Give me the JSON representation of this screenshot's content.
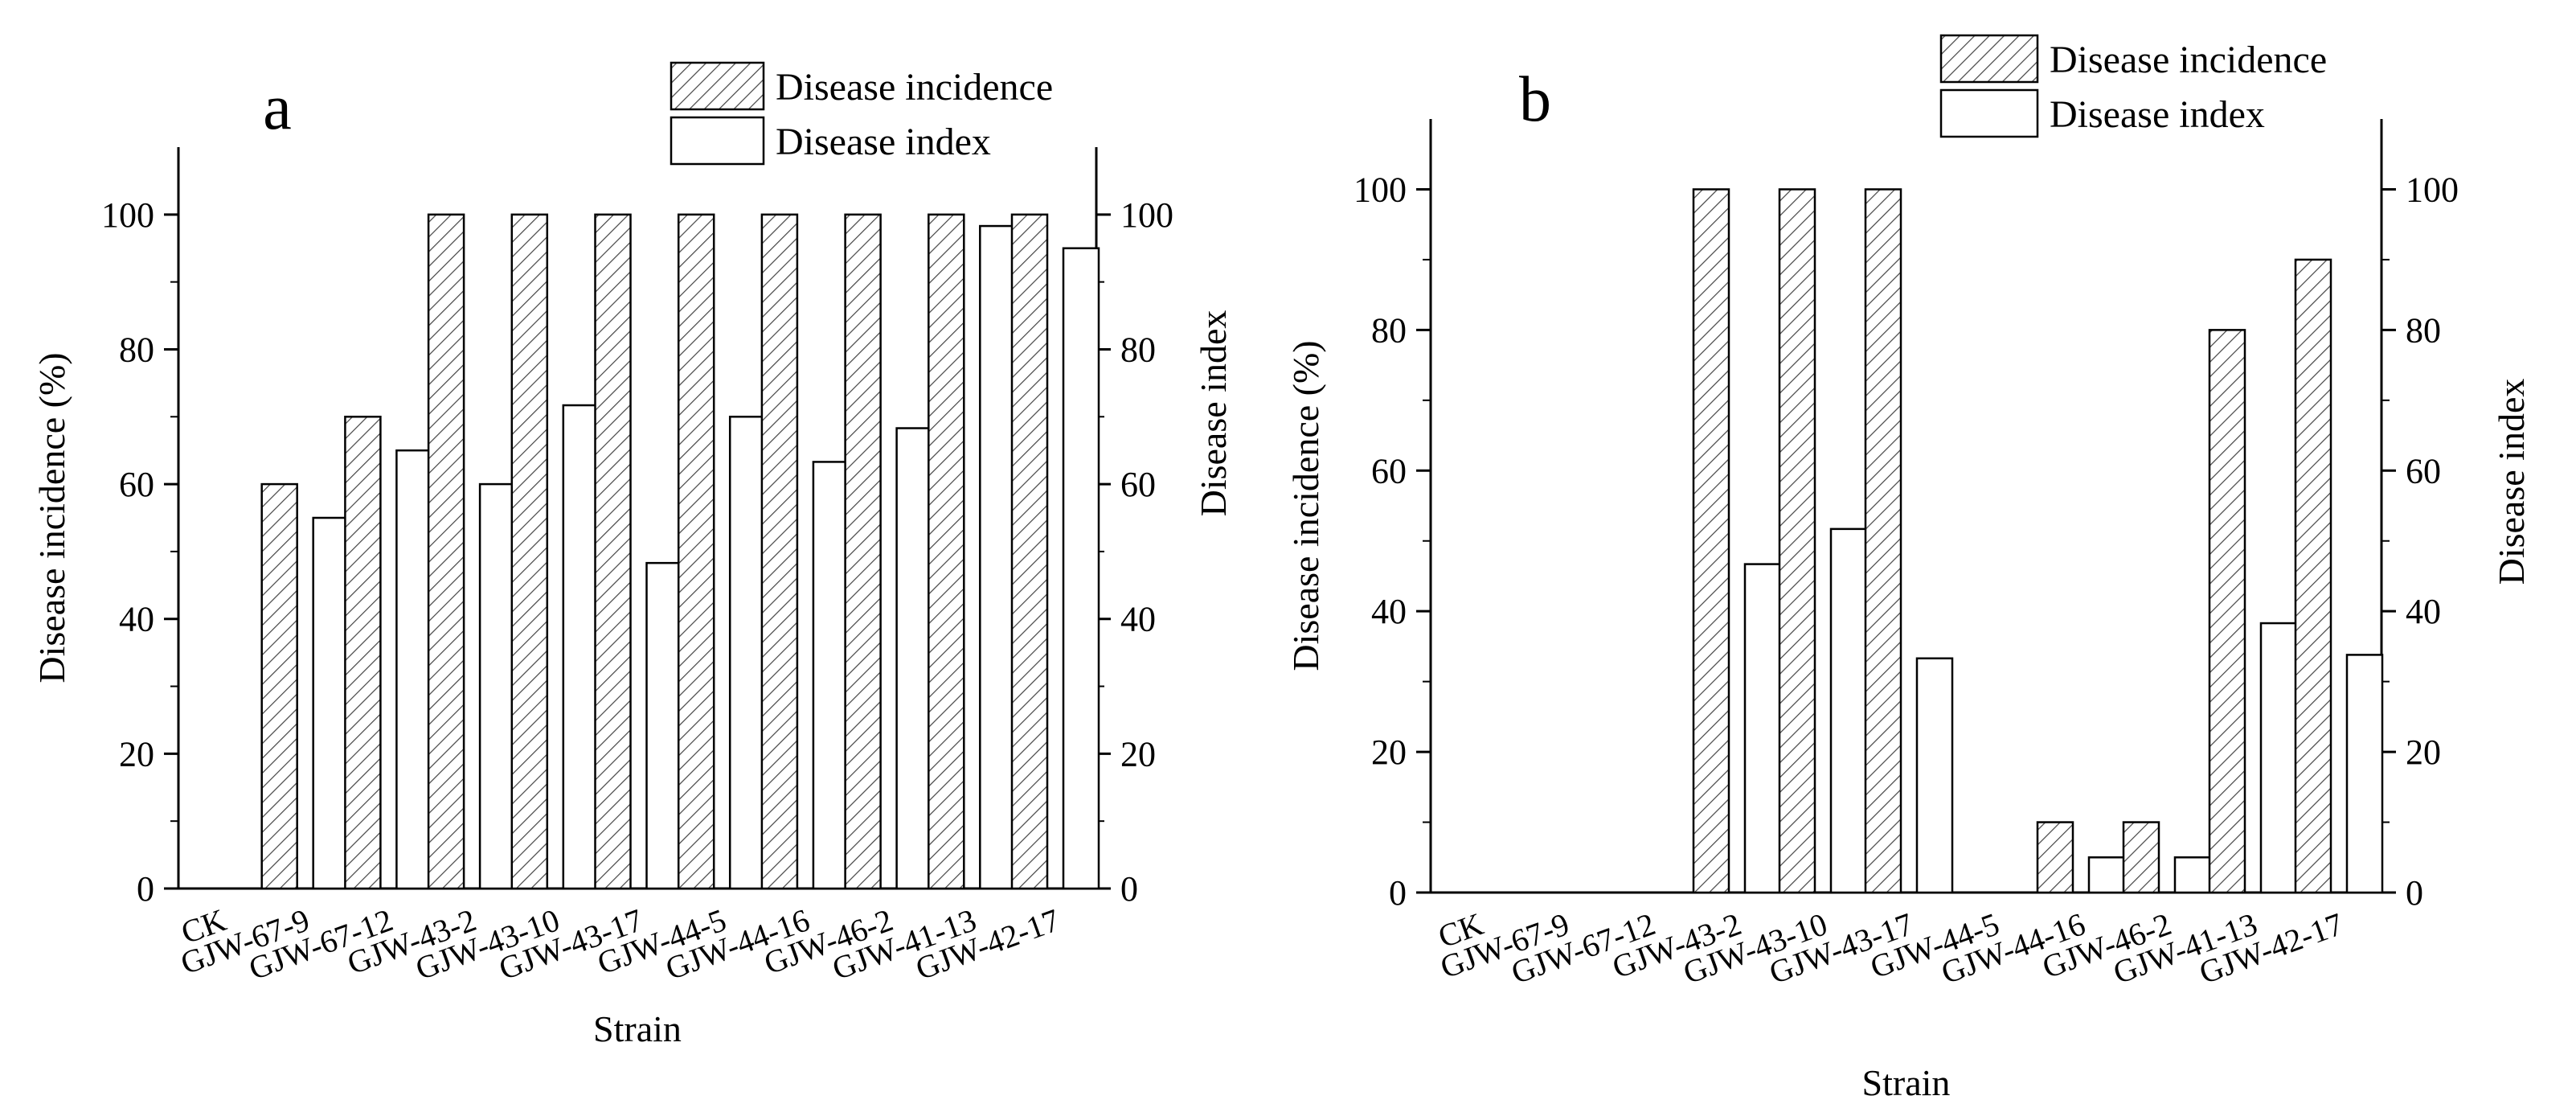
{
  "chart_data": [
    {
      "id": "a",
      "type": "bar",
      "panel_label": "a",
      "xlabel": "Strain",
      "ylabel_left": "Disease incidence (%)",
      "ylabel_right": "Disease index",
      "ylim": [
        0,
        110
      ],
      "yticks": [
        0,
        20,
        40,
        60,
        80,
        100
      ],
      "categories": [
        "CK",
        "GJW-67-9",
        "GJW-67-12",
        "GJW-43-2",
        "GJW-43-10",
        "GJW-43-17",
        "GJW-44-5",
        "GJW-44-16",
        "GJW-46-2",
        "GJW-41-13",
        "GJW-42-17"
      ],
      "series": [
        {
          "name": "Disease incidence",
          "pattern": "hatched",
          "axis": "left",
          "values": [
            0,
            60,
            70,
            100,
            100,
            100,
            100,
            100,
            100,
            100,
            100
          ]
        },
        {
          "name": "Disease index",
          "pattern": "open",
          "axis": "right",
          "values": [
            0,
            55,
            65,
            60,
            71.7,
            48.3,
            70,
            63.3,
            68.3,
            98.3,
            95
          ]
        }
      ],
      "legend": [
        "Disease incidence",
        "Disease index"
      ],
      "legend_position": "top-right"
    },
    {
      "id": "b",
      "type": "bar",
      "panel_label": "b",
      "xlabel": "Strain",
      "ylabel_left": "Disease incidence (%)",
      "ylabel_right": "Disease index",
      "ylim": [
        0,
        110
      ],
      "yticks": [
        0,
        20,
        40,
        60,
        80,
        100
      ],
      "categories": [
        "CK",
        "GJW-67-9",
        "GJW-67-12",
        "GJW-43-2",
        "GJW-43-10",
        "GJW-43-17",
        "GJW-44-5",
        "GJW-44-16",
        "GJW-46-2",
        "GJW-41-13",
        "GJW-42-17"
      ],
      "series": [
        {
          "name": "Disease incidence",
          "pattern": "hatched",
          "axis": "left",
          "values": [
            0,
            0,
            0,
            100,
            100,
            100,
            0,
            10,
            10,
            80,
            90
          ]
        },
        {
          "name": "Disease index",
          "pattern": "open",
          "axis": "right",
          "values": [
            0,
            0,
            0,
            46.7,
            51.7,
            33.3,
            0,
            5,
            5,
            38.3,
            33.8
          ]
        }
      ],
      "legend": [
        "Disease incidence",
        "Disease index"
      ],
      "legend_position": "top-right"
    }
  ]
}
